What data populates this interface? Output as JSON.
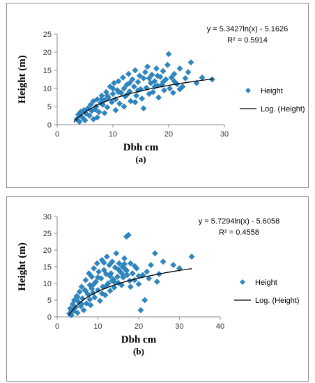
{
  "chart_data": [
    {
      "type": "scatter",
      "panel_label": "(a)",
      "xlabel": "Dbh cm",
      "ylabel": "Height (m)",
      "xlim": [
        0,
        30
      ],
      "ylim": [
        0,
        25
      ],
      "xticks": [
        "0",
        "10",
        "20",
        "30"
      ],
      "yticks": [
        "0",
        "5",
        "10",
        "15",
        "20",
        "25"
      ],
      "equation": "y = 5.3427ln(x) - 5.1626",
      "r_squared": "R² = 0.5914",
      "trend": {
        "type": "log",
        "a": 5.3427,
        "b": -5.1626,
        "x_range": [
          3,
          28
        ]
      },
      "legend": {
        "position": "right",
        "scatter_label": "Height",
        "trend_label": "Log. (Height)"
      },
      "marker_color": "#2e86c1",
      "series": [
        {
          "name": "Height",
          "points": [
            [
              3.5,
              1.5
            ],
            [
              3.8,
              2.8
            ],
            [
              4.0,
              0.8
            ],
            [
              4.2,
              3.5
            ],
            [
              4.5,
              2.0
            ],
            [
              4.8,
              4.0
            ],
            [
              5.0,
              1.2
            ],
            [
              5.2,
              3.0
            ],
            [
              5.5,
              4.5
            ],
            [
              5.8,
              2.5
            ],
            [
              6.0,
              5.5
            ],
            [
              6.2,
              3.8
            ],
            [
              6.5,
              6.5
            ],
            [
              6.8,
              4.2
            ],
            [
              7.0,
              5.0
            ],
            [
              7.2,
              7.0
            ],
            [
              7.5,
              3.5
            ],
            [
              7.8,
              6.0
            ],
            [
              8.0,
              8.0
            ],
            [
              8.2,
              5.5
            ],
            [
              8.5,
              6.8
            ],
            [
              8.8,
              9.0
            ],
            [
              9.0,
              4.8
            ],
            [
              9.2,
              7.5
            ],
            [
              9.5,
              10.5
            ],
            [
              9.8,
              6.2
            ],
            [
              10.0,
              8.5
            ],
            [
              10.2,
              11.5
            ],
            [
              10.5,
              7.0
            ],
            [
              10.8,
              9.5
            ],
            [
              11.0,
              12.0
            ],
            [
              11.2,
              5.8
            ],
            [
              11.5,
              8.8
            ],
            [
              11.8,
              13.0
            ],
            [
              12.0,
              10.0
            ],
            [
              12.2,
              7.8
            ],
            [
              12.5,
              11.0
            ],
            [
              12.8,
              14.0
            ],
            [
              13.0,
              9.2
            ],
            [
              13.2,
              6.5
            ],
            [
              13.5,
              12.5
            ],
            [
              13.8,
              10.5
            ],
            [
              14.0,
              15.0
            ],
            [
              14.2,
              8.0
            ],
            [
              14.5,
              11.8
            ],
            [
              14.8,
              13.5
            ],
            [
              15.0,
              9.8
            ],
            [
              15.2,
              7.2
            ],
            [
              15.5,
              12.8
            ],
            [
              15.8,
              14.5
            ],
            [
              16.0,
              10.2
            ],
            [
              16.2,
              16.0
            ],
            [
              16.5,
              8.5
            ],
            [
              16.8,
              11.5
            ],
            [
              17.0,
              13.8
            ],
            [
              17.2,
              9.0
            ],
            [
              17.5,
              12.0
            ],
            [
              17.8,
              15.5
            ],
            [
              18.0,
              10.8
            ],
            [
              18.2,
              7.5
            ],
            [
              18.5,
              13.2
            ],
            [
              18.8,
              11.0
            ],
            [
              19.0,
              14.8
            ],
            [
              19.2,
              9.5
            ],
            [
              19.5,
              12.5
            ],
            [
              19.8,
              16.5
            ],
            [
              20.0,
              19.5
            ],
            [
              20.2,
              10.0
            ],
            [
              20.5,
              13.0
            ],
            [
              20.8,
              8.8
            ],
            [
              21.0,
              14.0
            ],
            [
              21.5,
              11.2
            ],
            [
              22.0,
              15.5
            ],
            [
              22.5,
              10.5
            ],
            [
              23.0,
              12.8
            ],
            [
              23.5,
              14.5
            ],
            [
              24.0,
              17.2
            ],
            [
              25.0,
              11.5
            ],
            [
              26.0,
              13.0
            ],
            [
              27.8,
              12.5
            ],
            [
              6.5,
              1.5
            ],
            [
              7.2,
              2.0
            ],
            [
              8.5,
              3.2
            ],
            [
              10.5,
              4.0
            ],
            [
              12.0,
              5.0
            ],
            [
              14.0,
              6.2
            ],
            [
              15.5,
              4.5
            ],
            [
              11.0,
              9.0
            ],
            [
              9.0,
              8.0
            ],
            [
              13.0,
              11.5
            ],
            [
              16.5,
              12.8
            ],
            [
              18.0,
              13.5
            ],
            [
              19.0,
              11.8
            ],
            [
              21.0,
              12.0
            ],
            [
              22.0,
              9.8
            ],
            [
              8.0,
              7.0
            ],
            [
              10.0,
              10.0
            ],
            [
              12.5,
              8.2
            ],
            [
              14.5,
              9.5
            ],
            [
              17.5,
              10.5
            ]
          ]
        }
      ]
    },
    {
      "type": "scatter",
      "panel_label": "(b)",
      "xlabel": "Dbh cm",
      "ylabel": "Height (m)",
      "xlim": [
        0,
        40
      ],
      "ylim": [
        0,
        30
      ],
      "xticks": [
        "0",
        "10",
        "20",
        "30",
        "40"
      ],
      "yticks": [
        "0",
        "5",
        "10",
        "15",
        "20",
        "25",
        "30"
      ],
      "equation": "y = 5.7294ln(x) - 5.6058",
      "r_squared": "R² = 0.4558",
      "trend": {
        "type": "log",
        "a": 5.7294,
        "b": -5.6058,
        "x_range": [
          2.8,
          33
        ]
      },
      "legend": {
        "position": "right",
        "scatter_label": "Height",
        "trend_label": "Log. (Height)"
      },
      "marker_color": "#2e86c1",
      "series": [
        {
          "name": "Height",
          "points": [
            [
              3.0,
              1.0
            ],
            [
              3.2,
              2.5
            ],
            [
              3.5,
              0.5
            ],
            [
              3.8,
              3.8
            ],
            [
              4.0,
              1.8
            ],
            [
              4.2,
              5.0
            ],
            [
              4.5,
              2.8
            ],
            [
              4.8,
              6.2
            ],
            [
              5.0,
              1.2
            ],
            [
              5.2,
              4.5
            ],
            [
              5.5,
              7.5
            ],
            [
              5.8,
              3.2
            ],
            [
              6.0,
              9.0
            ],
            [
              6.2,
              5.5
            ],
            [
              6.5,
              2.0
            ],
            [
              6.8,
              8.0
            ],
            [
              7.0,
              11.0
            ],
            [
              7.2,
              4.0
            ],
            [
              7.5,
              6.8
            ],
            [
              7.8,
              13.0
            ],
            [
              8.0,
              9.5
            ],
            [
              8.2,
              3.5
            ],
            [
              8.5,
              12.0
            ],
            [
              8.8,
              7.2
            ],
            [
              9.0,
              14.5
            ],
            [
              9.2,
              5.8
            ],
            [
              9.5,
              10.5
            ],
            [
              9.8,
              16.0
            ],
            [
              10.0,
              8.0
            ],
            [
              10.2,
              13.5
            ],
            [
              10.5,
              4.8
            ],
            [
              10.8,
              11.5
            ],
            [
              11.0,
              17.0
            ],
            [
              11.2,
              9.0
            ],
            [
              11.5,
              14.0
            ],
            [
              11.8,
              6.5
            ],
            [
              12.0,
              12.8
            ],
            [
              12.2,
              18.0
            ],
            [
              12.5,
              10.0
            ],
            [
              12.8,
              15.5
            ],
            [
              13.0,
              7.8
            ],
            [
              13.2,
              13.0
            ],
            [
              13.5,
              16.5
            ],
            [
              13.8,
              11.2
            ],
            [
              14.0,
              8.8
            ],
            [
              14.2,
              14.8
            ],
            [
              14.5,
              19.0
            ],
            [
              14.8,
              12.0
            ],
            [
              15.0,
              10.2
            ],
            [
              15.2,
              16.0
            ],
            [
              15.5,
              13.5
            ],
            [
              15.8,
              9.5
            ],
            [
              16.0,
              15.0
            ],
            [
              16.2,
              11.8
            ],
            [
              16.5,
              17.5
            ],
            [
              16.8,
              14.2
            ],
            [
              17.0,
              24.0
            ],
            [
              17.2,
              12.5
            ],
            [
              17.5,
              24.5
            ],
            [
              17.8,
              10.8
            ],
            [
              18.0,
              16.0
            ],
            [
              18.5,
              13.0
            ],
            [
              19.0,
              11.0
            ],
            [
              19.5,
              14.5
            ],
            [
              20.0,
              9.8
            ],
            [
              20.5,
              2.0
            ],
            [
              21.0,
              12.5
            ],
            [
              21.5,
              5.0
            ],
            [
              22.0,
              13.5
            ],
            [
              22.5,
              11.5
            ],
            [
              23.0,
              15.5
            ],
            [
              24.0,
              19.0
            ],
            [
              24.5,
              10.5
            ],
            [
              25.0,
              12.8
            ],
            [
              26.0,
              16.5
            ],
            [
              28.5,
              15.5
            ],
            [
              30.0,
              14.5
            ],
            [
              33.0,
              18.0
            ],
            [
              5.0,
              6.0
            ],
            [
              6.0,
              3.8
            ],
            [
              7.0,
              7.8
            ],
            [
              8.0,
              5.2
            ],
            [
              9.0,
              9.8
            ],
            [
              10.0,
              11.8
            ],
            [
              11.0,
              7.0
            ],
            [
              12.0,
              9.2
            ],
            [
              13.0,
              12.2
            ],
            [
              14.0,
              10.5
            ],
            [
              15.0,
              14.2
            ],
            [
              16.0,
              12.8
            ],
            [
              17.0,
              13.8
            ],
            [
              18.0,
              9.0
            ],
            [
              19.0,
              15.2
            ],
            [
              20.0,
              12.2
            ],
            [
              8.5,
              8.5
            ],
            [
              11.5,
              16.2
            ],
            [
              13.5,
              10.8
            ],
            [
              16.5,
              15.8
            ]
          ]
        }
      ]
    }
  ]
}
